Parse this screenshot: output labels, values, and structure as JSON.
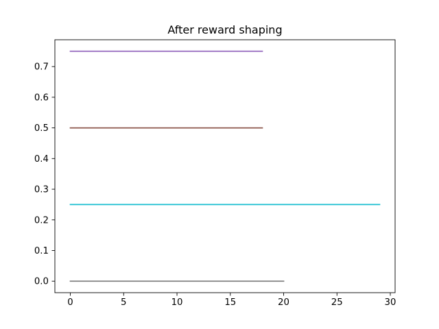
{
  "chart_data": {
    "type": "line",
    "title": "After reward shaping",
    "xlabel": "",
    "ylabel": "",
    "xlim": [
      -1.45,
      30.45
    ],
    "ylim": [
      -0.0375,
      0.7875
    ],
    "xticks": [
      0,
      5,
      10,
      15,
      20,
      25,
      30
    ],
    "yticks": [
      0.0,
      0.1,
      0.2,
      0.3,
      0.4,
      0.5,
      0.6,
      0.7
    ],
    "xtick_labels": [
      "0",
      "5",
      "10",
      "15",
      "20",
      "25",
      "30"
    ],
    "ytick_labels": [
      "0.0",
      "0.1",
      "0.2",
      "0.3",
      "0.4",
      "0.5",
      "0.6",
      "0.7"
    ],
    "grid": false,
    "legend": "none",
    "series": [
      {
        "color": "#9467bd",
        "x": [
          0,
          18
        ],
        "y": [
          0.75,
          0.75
        ]
      },
      {
        "color": "#8c564b",
        "x": [
          0,
          18
        ],
        "y": [
          0.5,
          0.5
        ]
      },
      {
        "color": "#17becf",
        "x": [
          0,
          29
        ],
        "y": [
          0.25,
          0.25
        ]
      },
      {
        "color": "#7f7f7f",
        "x": [
          0,
          20
        ],
        "y": [
          0.0,
          0.0
        ]
      }
    ]
  }
}
